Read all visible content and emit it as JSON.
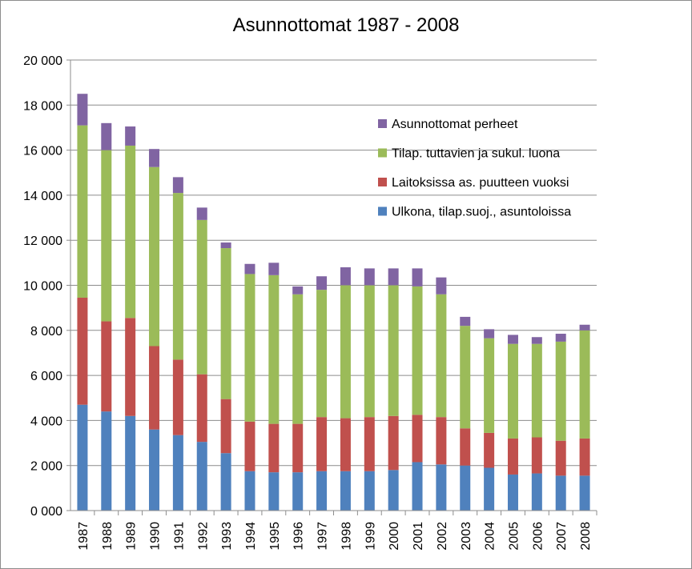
{
  "chart_data": {
    "type": "bar",
    "stacked": true,
    "title": "Asunnottomat 1987 - 2008",
    "xlabel": "",
    "ylabel": "",
    "ylim": [
      0,
      20000
    ],
    "yticks": [
      "0 000",
      "2 000",
      "4 000",
      "6 000",
      "8 000",
      "10 000",
      "12 000",
      "14 000",
      "16 000",
      "18 000",
      "20 000"
    ],
    "grid": true,
    "legend_position": "top-right",
    "categories": [
      "1987",
      "1988",
      "1989",
      "1990",
      "1991",
      "1992",
      "1993",
      "1994",
      "1995",
      "1996",
      "1997",
      "1998",
      "1999",
      "2000",
      "2001",
      "2002",
      "2003",
      "2004",
      "2005",
      "2006",
      "2007",
      "2008"
    ],
    "series": [
      {
        "name": "Ulkona, tilap.suoj., asuntoloissa",
        "color": "#4f81bd",
        "values": [
          4700,
          4400,
          4200,
          3600,
          3350,
          3050,
          2550,
          1750,
          1700,
          1700,
          1750,
          1750,
          1750,
          1800,
          2150,
          2050,
          2000,
          1900,
          1600,
          1650,
          1550,
          1550
        ]
      },
      {
        "name": "Laitoksissa as. puutteen  vuoksi",
        "color": "#c0504d",
        "values": [
          4750,
          4000,
          4350,
          3700,
          3350,
          3000,
          2400,
          2200,
          2150,
          2150,
          2400,
          2350,
          2400,
          2400,
          2100,
          2100,
          1650,
          1550,
          1600,
          1600,
          1550,
          1650
        ]
      },
      {
        "name": "Tilap. tuttavien  ja sukul. luona",
        "color": "#9bbb59",
        "values": [
          7650,
          7600,
          7650,
          7950,
          7400,
          6850,
          6700,
          6550,
          6600,
          5750,
          5650,
          5900,
          5850,
          5800,
          5700,
          5450,
          4550,
          4200,
          4200,
          4150,
          4400,
          4800
        ]
      },
      {
        "name": "Asunnottomat perheet",
        "color": "#8064a2",
        "values": [
          1400,
          1200,
          850,
          800,
          700,
          550,
          250,
          450,
          550,
          350,
          600,
          800,
          750,
          750,
          800,
          750,
          400,
          400,
          400,
          300,
          350,
          250
        ]
      }
    ]
  }
}
